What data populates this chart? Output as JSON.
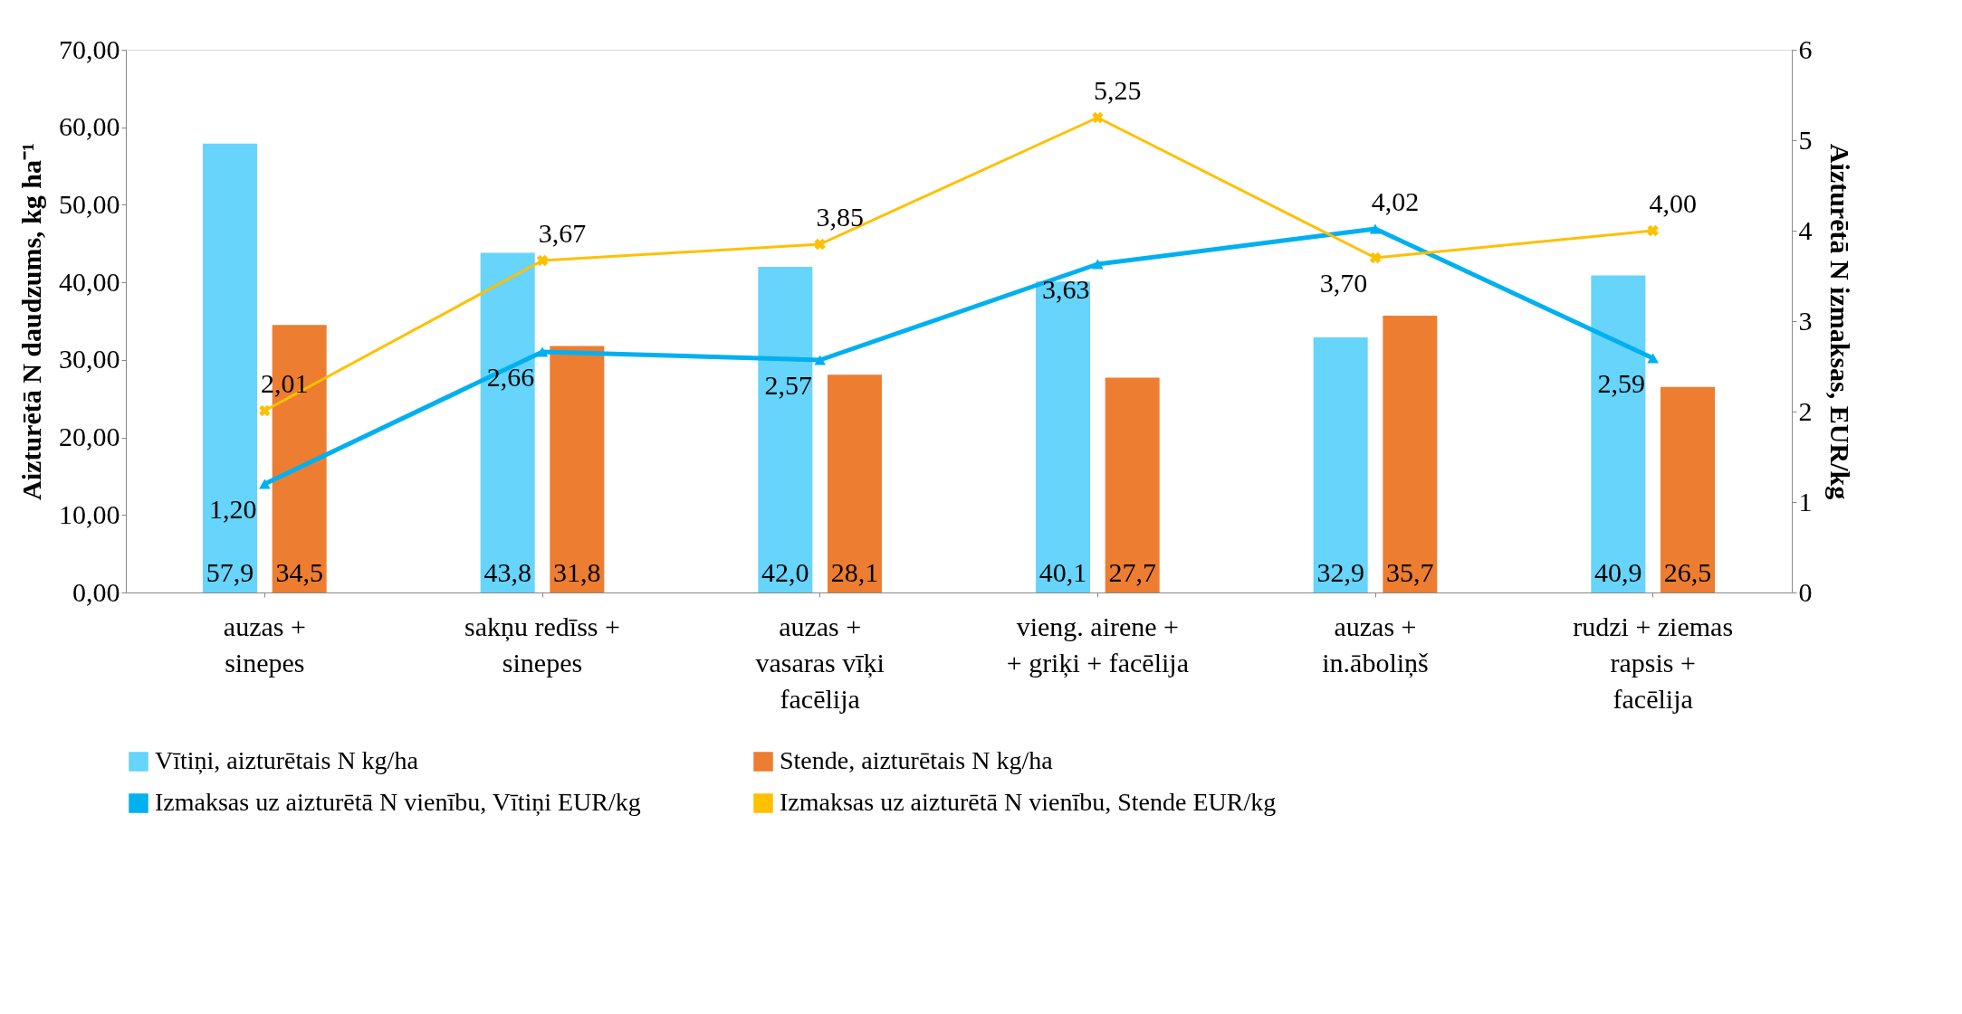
{
  "chart_data": {
    "type": "bar",
    "ylabel": "Aizturētā N daudzums, kg ha⁻¹",
    "y2label": "Aizturētā N izmaksas, EUR/kg",
    "categories": [
      "auzas +\nsinepes",
      "sakņu redīss +\nsinepes",
      "auzas  +\nvasaras vīķi\nfacēlija",
      "vieng. airene +\n+ griķi + facēlija",
      "auzas  +\nin.āboliņš",
      "rudzi + ziemas\nrapsis  +\nfacēlija"
    ],
    "series": [
      {
        "name": "Vītiņi,  aizturētais N  kg/ha",
        "color": "#66d4fb",
        "values": [
          57.9,
          43.8,
          42.0,
          40.1,
          32.9,
          40.9
        ],
        "value_labels": [
          "57,9",
          "43,8",
          "42,0",
          "40,1",
          "32,9",
          "40,9"
        ]
      },
      {
        "name": "Stende, aizturētais N  kg/ha",
        "color": "#ed7d31",
        "values": [
          34.5,
          31.8,
          28.1,
          27.7,
          35.7,
          26.5
        ],
        "value_labels": [
          "34,5",
          "31,8",
          "28,1",
          "27,7",
          "35,7",
          "26,5"
        ]
      },
      {
        "name": "Izmaksas uz aizturētā N vienību, Vītiņi EUR/kg",
        "type": "line",
        "axis": "y2",
        "marker": "triangle",
        "color": "#00b0f0",
        "values": [
          1.2,
          2.66,
          2.57,
          3.63,
          4.02,
          2.59
        ],
        "value_labels": [
          "1,20",
          "2,66",
          "2,57",
          "3,63",
          "4,02",
          "2,59"
        ]
      },
      {
        "name": "Izmaksas uz aizturētā N vienību, Stende EUR/kg",
        "type": "line",
        "axis": "y2",
        "marker": "cross",
        "color": "#ffc000",
        "values": [
          2.01,
          3.67,
          3.85,
          5.25,
          3.7,
          4.0
        ],
        "value_labels": [
          "2,01",
          "3,67",
          "3,85",
          "5,25",
          "3,70",
          "4,00"
        ]
      }
    ],
    "ylim": [
      0,
      70
    ],
    "yticks": [
      {
        "value": 0,
        "label": "0,00"
      },
      {
        "value": 10,
        "label": "10,00"
      },
      {
        "value": 20,
        "label": "20,00"
      },
      {
        "value": 30,
        "label": "30,00"
      },
      {
        "value": 40,
        "label": "40,00"
      },
      {
        "value": 50,
        "label": "50,00"
      },
      {
        "value": 60,
        "label": "60,00"
      },
      {
        "value": 70,
        "label": "70,00"
      }
    ],
    "y2lim": [
      0,
      6
    ],
    "y2ticks": [
      0,
      1,
      2,
      3,
      4,
      5,
      6
    ],
    "grid": false,
    "legend": "bottom"
  }
}
